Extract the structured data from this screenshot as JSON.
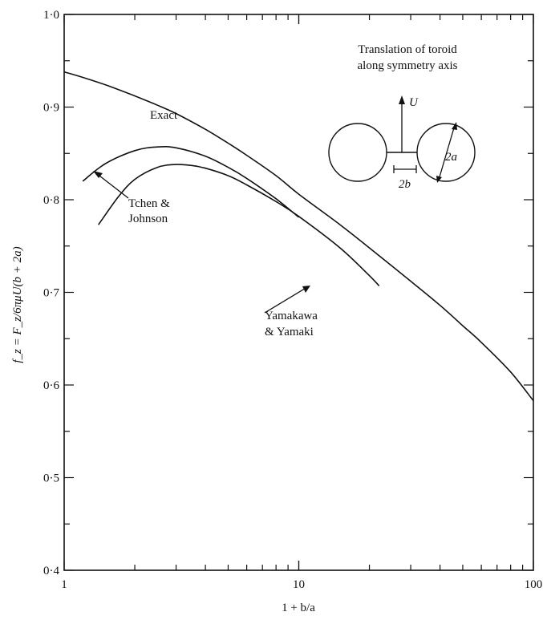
{
  "chart_data": {
    "type": "line",
    "title": "",
    "xlabel": "1 + b/a",
    "ylabel": "f_z = F_z/6πμU(b + 2a)",
    "xscale": "log",
    "xlim": [
      1,
      100
    ],
    "ylim": [
      0.4,
      1.0
    ],
    "x_ticks": [
      "1",
      "10",
      "100"
    ],
    "y_ticks": [
      "0·4",
      "0·5",
      "0·6",
      "0·7",
      "0·8",
      "0·9",
      "1·0"
    ],
    "grid": false,
    "series": [
      {
        "name": "Exact",
        "x": [
          1,
          1.2,
          1.5,
          2,
          2.5,
          3,
          4,
          5,
          6,
          8,
          10,
          15,
          20,
          30,
          40,
          50,
          60,
          80,
          100
        ],
        "y": [
          0.938,
          0.932,
          0.924,
          0.912,
          0.902,
          0.893,
          0.876,
          0.861,
          0.848,
          0.826,
          0.806,
          0.773,
          0.748,
          0.712,
          0.686,
          0.664,
          0.646,
          0.614,
          0.583
        ]
      },
      {
        "name": "Tchen & Johnson",
        "x": [
          1.2,
          1.5,
          2,
          2.5,
          3,
          4,
          5,
          6,
          8,
          10
        ],
        "y": [
          0.82,
          0.839,
          0.853,
          0.857,
          0.856,
          0.847,
          0.835,
          0.823,
          0.801,
          0.781
        ]
      },
      {
        "name": "Yamakawa & Yamaki",
        "x": [
          1.4,
          1.7,
          2,
          2.5,
          3,
          3.5,
          4,
          5,
          6,
          8,
          10,
          15,
          20,
          22
        ],
        "y": [
          0.773,
          0.803,
          0.822,
          0.835,
          0.838,
          0.837,
          0.834,
          0.826,
          0.816,
          0.798,
          0.782,
          0.748,
          0.718,
          0.707
        ]
      }
    ],
    "annotations": {
      "exact": "Exact",
      "tchen_line1": "Tchen &",
      "tchen_line2": "Johnson",
      "yama_line1": "Yamakawa",
      "yama_line2": "& Yamaki"
    },
    "inset": {
      "title_line1": "Translation of toroid",
      "title_line2": "along symmetry axis",
      "velocity_label": "U",
      "diameter_label": "2a",
      "gap_label": "2b"
    }
  }
}
